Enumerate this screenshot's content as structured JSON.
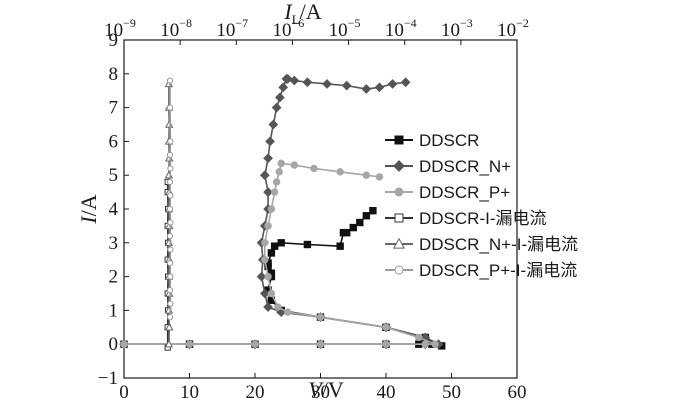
{
  "chart_data": {
    "type": "line",
    "x_title": {
      "base": "V",
      "tail": "/V"
    },
    "y_title": {
      "base": "I",
      "tail": "/A"
    },
    "top_title": {
      "base": "I",
      "sub": "L",
      "tail": "/A"
    },
    "xlim": [
      0,
      60
    ],
    "ylim": [
      -1,
      9
    ],
    "x_ticks": [
      0,
      10,
      20,
      30,
      40,
      50,
      60
    ],
    "x_tick_labels": [
      "0",
      "10",
      "20",
      "30",
      "40",
      "50",
      "60"
    ],
    "y_ticks": [
      -1,
      0,
      1,
      2,
      3,
      4,
      5,
      6,
      7,
      8,
      9
    ],
    "y_tick_labels": [
      "−1",
      "0",
      "1",
      "2",
      "3",
      "4",
      "5",
      "6",
      "7",
      "8",
      "9"
    ],
    "top_axis": {
      "scale": "log",
      "lim": [
        1e-09,
        0.01
      ],
      "ticks": [
        1e-09,
        1e-08,
        1e-07,
        1e-06,
        1e-05,
        0.0001,
        0.001,
        0.01
      ],
      "tick_labels": [
        {
          "base": "10",
          "exp": "−9"
        },
        {
          "base": "10",
          "exp": "−8"
        },
        {
          "base": "10",
          "exp": "−7"
        },
        {
          "base": "10",
          "exp": "−6"
        },
        {
          "base": "10",
          "exp": "−5"
        },
        {
          "base": "10",
          "exp": "−4"
        },
        {
          "base": "10",
          "exp": "−3"
        },
        {
          "base": "10",
          "exp": "−2"
        }
      ]
    },
    "legend_position": "right",
    "series": [
      {
        "name": "DDSCR",
        "axis": "bottom",
        "color": "#111111",
        "marker": "square",
        "filled": true,
        "x": [
          0,
          10,
          20,
          30,
          40,
          45,
          47,
          48.5,
          46,
          40,
          30,
          24,
          22.5,
          22,
          22.5,
          22,
          22.5,
          22,
          22.5,
          23,
          24,
          28,
          33,
          33.5,
          34,
          35,
          36,
          37,
          38
        ],
        "y": [
          0,
          0,
          0,
          0,
          0,
          0,
          0,
          -0.05,
          0.2,
          0.5,
          0.8,
          1.0,
          1.3,
          1.6,
          2.0,
          2.3,
          2.1,
          2.4,
          2.7,
          2.9,
          3.0,
          2.95,
          2.9,
          3.3,
          3.3,
          3.45,
          3.6,
          3.8,
          3.95
        ]
      },
      {
        "name": "DDSCR_N+",
        "axis": "bottom",
        "color": "#555555",
        "marker": "diamond",
        "filled": true,
        "x": [
          0,
          10,
          20,
          30,
          40,
          46,
          48,
          46,
          40,
          30,
          24,
          22,
          21.5,
          21,
          21.2,
          21,
          21.5,
          22,
          22,
          21.5,
          22,
          22.3,
          22.8,
          23.3,
          23.8,
          24.3,
          24.8,
          25,
          26,
          28,
          31,
          34,
          37,
          39,
          41,
          43
        ],
        "y": [
          0,
          0,
          0,
          0,
          0,
          0,
          0,
          0.2,
          0.5,
          0.8,
          0.95,
          1.1,
          1.5,
          2.0,
          2.5,
          3.0,
          3.5,
          4.0,
          4.5,
          5.0,
          5.5,
          6.0,
          6.5,
          7.0,
          7.3,
          7.6,
          7.85,
          7.85,
          7.8,
          7.75,
          7.7,
          7.65,
          7.55,
          7.6,
          7.7,
          7.75
        ]
      },
      {
        "name": "DDSCR_P+",
        "axis": "bottom",
        "color": "#a6a6a6",
        "marker": "circle",
        "filled": true,
        "x": [
          0,
          10,
          20,
          30,
          40,
          46,
          47.5,
          45,
          40,
          30,
          25,
          23.5,
          22.5,
          22,
          21.5,
          21.5,
          22,
          22.5,
          23,
          23.3,
          23.7,
          24,
          26,
          29,
          33,
          37,
          39
        ],
        "y": [
          0,
          0,
          0,
          0,
          0,
          0,
          0,
          0.2,
          0.5,
          0.8,
          0.95,
          1.1,
          1.5,
          2.0,
          2.5,
          3.0,
          3.5,
          4.0,
          4.5,
          4.8,
          5.1,
          5.35,
          5.3,
          5.2,
          5.1,
          5.0,
          4.95
        ]
      },
      {
        "name": "DDSCR-I-漏电流",
        "axis": "top",
        "color": "#333333",
        "marker": "square",
        "filled": false,
        "x": [
          6e-09,
          6e-09,
          6.1e-09,
          6e-09,
          6.1e-09,
          6e-09,
          6.1e-09,
          6e-09,
          6.1e-09,
          6e-09,
          6e-09
        ],
        "y": [
          -0.1,
          0.5,
          1.0,
          1.5,
          2.0,
          2.5,
          3.0,
          3.5,
          4.0,
          4.5,
          4.8
        ]
      },
      {
        "name": "DDSCR_N+-I-漏电流",
        "axis": "top",
        "color": "#666666",
        "marker": "triangle",
        "filled": false,
        "x": [
          6.3e-09,
          6.4e-09,
          6.3e-09,
          6.4e-09,
          6.3e-09,
          6.4e-09,
          6.3e-09,
          6.4e-09,
          6.3e-09,
          6.4e-09,
          6.3e-09,
          6.4e-09,
          6.3e-09,
          6.4e-09,
          6.3e-09,
          6.3e-09
        ],
        "y": [
          0,
          0.5,
          1.0,
          1.5,
          2.0,
          2.5,
          3.0,
          3.5,
          4.0,
          4.5,
          5.0,
          5.5,
          6.0,
          6.5,
          7.0,
          7.7
        ]
      },
      {
        "name": "DDSCR_P+-I-漏电流",
        "axis": "top",
        "color": "#999999",
        "marker": "circle",
        "filled": false,
        "x": [
          6.6e-09,
          6.7e-09,
          6.6e-09,
          6.7e-09,
          6.6e-09,
          6.7e-09,
          6.6e-09,
          6.7e-09,
          6.6e-09,
          6.7e-09,
          6.6e-09,
          6.7e-09,
          6.6e-09,
          6.7e-09,
          6.6e-09,
          6.6e-09
        ],
        "y": [
          0.8,
          1.2,
          1.6,
          2.0,
          2.4,
          2.8,
          3.2,
          3.6,
          4.0,
          4.4,
          4.8,
          5.2,
          5.6,
          6.0,
          7.0,
          7.8
        ]
      }
    ]
  }
}
